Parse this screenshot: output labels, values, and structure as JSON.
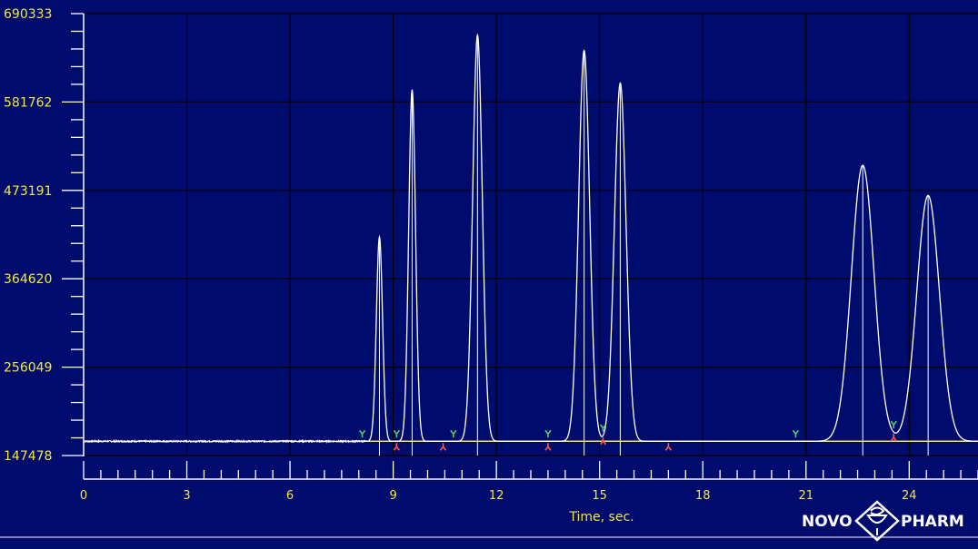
{
  "chart_data": {
    "type": "line",
    "xlabel": "Time, sec.",
    "ylabel": "",
    "xlim": [
      0,
      26
    ],
    "ylim": [
      147478,
      690333
    ],
    "x_ticks": [
      0,
      3,
      6,
      9,
      12,
      15,
      18,
      21,
      24
    ],
    "x_tick_labels": [
      "0",
      "3",
      "6",
      "9",
      "12",
      "15",
      "18",
      "21",
      "24"
    ],
    "y_ticks": [
      147478,
      256049,
      364620,
      473191,
      581762,
      690333
    ],
    "y_tick_labels": [
      "147478",
      "256049",
      "364620",
      "473191",
      "581762",
      "690333"
    ],
    "grid": true,
    "baseline": 165000,
    "peaks": [
      {
        "rt": 8.6,
        "height": 416000,
        "sigma": 0.09
      },
      {
        "rt": 9.55,
        "height": 597000,
        "sigma": 0.1
      },
      {
        "rt": 11.45,
        "height": 664000,
        "sigma": 0.14
      },
      {
        "rt": 14.55,
        "height": 645000,
        "sigma": 0.16
      },
      {
        "rt": 15.6,
        "height": 605000,
        "sigma": 0.17
      },
      {
        "rt": 22.65,
        "height": 504000,
        "sigma": 0.33
      },
      {
        "rt": 24.55,
        "height": 467000,
        "sigma": 0.33
      }
    ],
    "start_markers": [
      8.1,
      9.1,
      10.75,
      13.5,
      15.1,
      20.7,
      23.55
    ],
    "end_markers": [
      9.1,
      10.45,
      13.5,
      15.1,
      17.0,
      23.55
    ]
  },
  "colors": {
    "background": "#000b6e",
    "grid": "#000000",
    "axis": "#ffffff",
    "trace": "#ffffff",
    "baseline": "#f2e83a",
    "tick_label": "#f2e83a",
    "start_marker": "#4ecb6a",
    "end_marker": "#ff5a4a"
  },
  "logo": {
    "left": "NOVO",
    "right": "PHARM",
    "icon": "bowl-of-hygieia-icon"
  }
}
